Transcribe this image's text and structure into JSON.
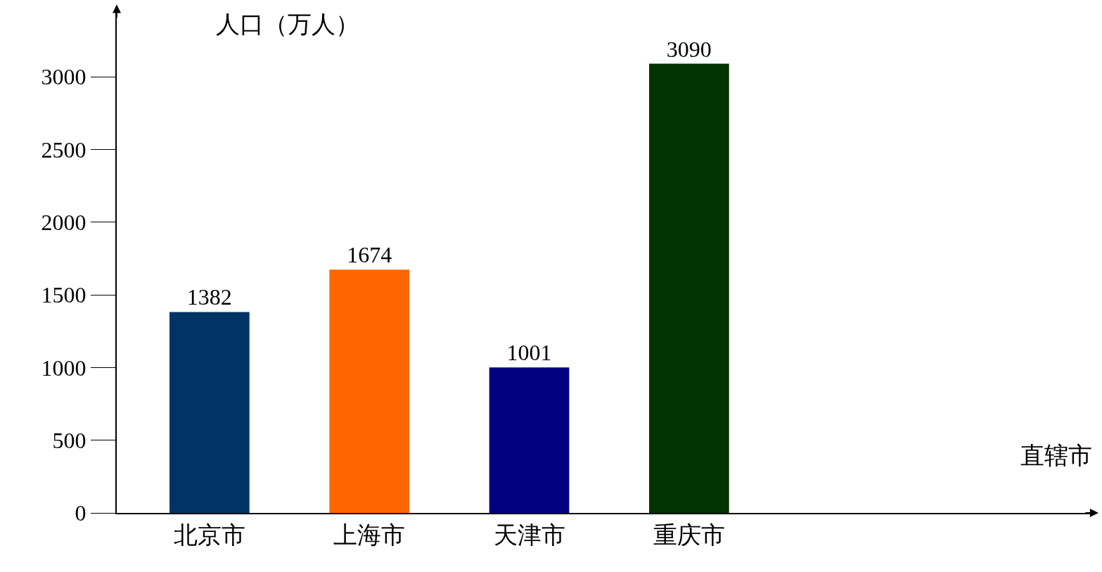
{
  "chart_data": {
    "type": "bar",
    "annotations": [
      "直辖市"
    ],
    "ylabel": "人口（万人）",
    "categories": [
      "北京市",
      "上海市",
      "天津市",
      "重庆市"
    ],
    "values": [
      1382,
      1674,
      1001,
      3090
    ],
    "colors": [
      "#003366",
      "#ff6600",
      "#000080",
      "#003300"
    ],
    "ylim": [
      0,
      3480
    ],
    "yticks": [
      0,
      500,
      1000,
      1500,
      2000,
      2500,
      3000
    ],
    "data_labels": true,
    "grid": false
  }
}
